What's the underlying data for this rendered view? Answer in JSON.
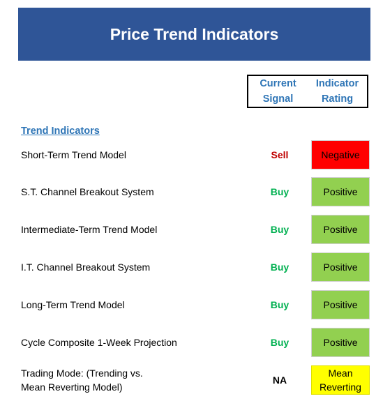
{
  "title": "Price Trend Indicators",
  "headers": {
    "current_signal": [
      "Current",
      "Signal"
    ],
    "indicator_rating": [
      "Indicator",
      "Rating"
    ]
  },
  "section_title": "Trend Indicators",
  "rows": [
    {
      "label": "Short-Term Trend Model",
      "signal": "Sell",
      "signal_color": "#c00000",
      "rating": "Negative",
      "rating_color": "#ff0000"
    },
    {
      "label": "S.T. Channel Breakout System",
      "signal": "Buy",
      "signal_color": "#00b050",
      "rating": "Positive",
      "rating_color": "#92d050"
    },
    {
      "label": "Intermediate-Term Trend Model",
      "signal": "Buy",
      "signal_color": "#00b050",
      "rating": "Positive",
      "rating_color": "#92d050"
    },
    {
      "label": "I.T. Channel Breakout System",
      "signal": "Buy",
      "signal_color": "#00b050",
      "rating": "Positive",
      "rating_color": "#92d050"
    },
    {
      "label": "Long-Term Trend Model",
      "signal": "Buy",
      "signal_color": "#00b050",
      "rating": "Positive",
      "rating_color": "#92d050"
    },
    {
      "label": "Cycle Composite 1-Week Projection",
      "signal": "Buy",
      "signal_color": "#00b050",
      "rating": "Positive",
      "rating_color": "#92d050"
    },
    {
      "label_lines": [
        "Trading Mode: (Trending vs.",
        "Mean Reverting Model)"
      ],
      "signal": "NA",
      "signal_color": "#000000",
      "rating_lines": [
        "Mean",
        "Reverting"
      ],
      "rating_color": "#ffff00"
    }
  ]
}
